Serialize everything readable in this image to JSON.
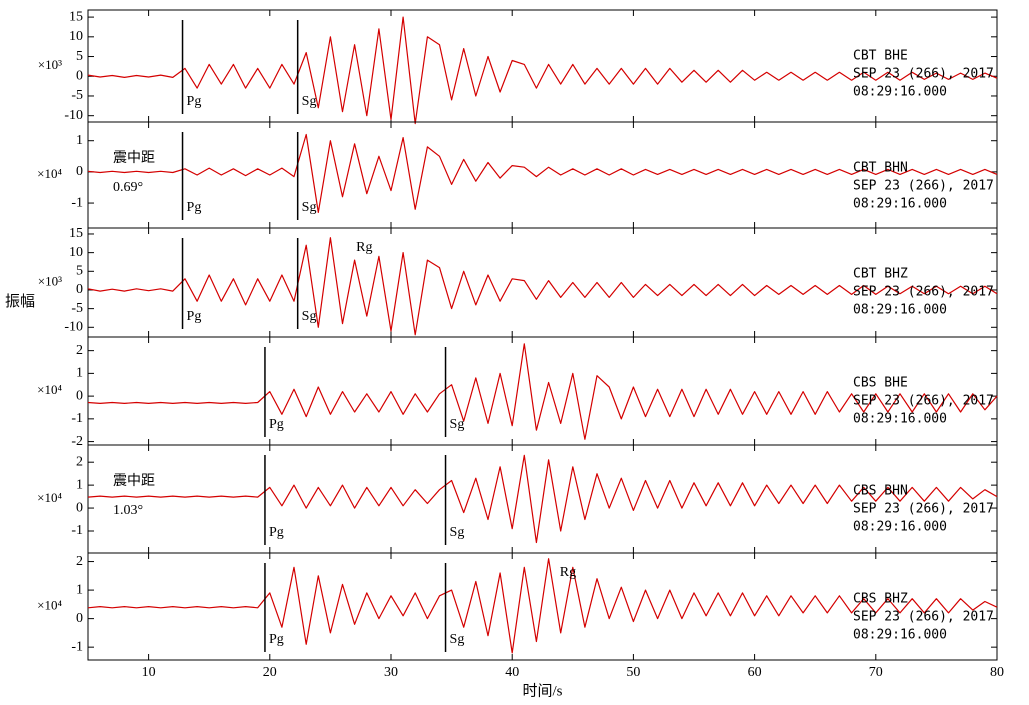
{
  "chart_data": [
    {
      "type": "line",
      "unit_label": "×10³",
      "station": "CBT BHE",
      "date": "SEP 23 (266), 2017",
      "time": "08:29:16.000",
      "color": "#d40000",
      "xlim": [
        5,
        80
      ],
      "ylim": [
        -11.6,
        16.8
      ],
      "yticks": [
        -10,
        -5,
        0,
        5,
        10,
        15
      ],
      "phases": [
        {
          "label": "Pg",
          "x": 12.8
        },
        {
          "label": "Sg",
          "x": 22.3
        }
      ],
      "x": [
        5,
        6,
        7,
        8,
        9,
        10,
        11,
        12,
        13,
        14,
        15,
        16,
        17,
        18,
        19,
        20,
        21,
        22,
        23,
        24,
        25,
        26,
        27,
        28,
        29,
        30,
        31,
        32,
        33,
        34,
        35,
        36,
        37,
        38,
        39,
        40,
        41,
        42,
        43,
        44,
        45,
        46,
        47,
        48,
        49,
        50,
        51,
        52,
        53,
        54,
        55,
        56,
        57,
        58,
        59,
        60,
        61,
        62,
        63,
        64,
        65,
        66,
        67,
        68,
        69,
        70,
        71,
        72,
        73,
        74,
        75,
        76,
        77,
        78,
        79,
        80
      ],
      "values": [
        0.3,
        -0.2,
        0.2,
        -0.3,
        0.2,
        -0.2,
        0.3,
        -0.3,
        2,
        -3,
        3,
        -2,
        3,
        -3,
        2,
        -3,
        3,
        -2,
        6,
        -8,
        10,
        -9,
        8,
        -10,
        12,
        -11,
        15,
        -12,
        10,
        8,
        -6,
        7,
        -5,
        5,
        -4,
        4,
        3,
        -3,
        3,
        -2,
        3,
        -2,
        2,
        -2,
        2,
        -2,
        2,
        -2,
        2,
        -1.5,
        1.5,
        -1.5,
        1.5,
        -1.5,
        1.5,
        -1,
        1,
        -1,
        1,
        -1,
        1,
        -1,
        1,
        -1,
        1,
        -1,
        1,
        -1,
        1,
        -0.8,
        0.8,
        -0.8,
        0.8,
        -0.8,
        0.8,
        -0.5
      ]
    },
    {
      "type": "line",
      "unit_label": "×10⁴",
      "station": "CBT BHN",
      "date": "SEP 23 (266), 2017",
      "time": "08:29:16.000",
      "color": "#d40000",
      "distance_label": "震中距",
      "distance": "0.69°",
      "xlim": [
        5,
        80
      ],
      "ylim": [
        -1.8,
        1.6
      ],
      "yticks": [
        -1,
        0,
        1
      ],
      "phases": [
        {
          "label": "Pg",
          "x": 12.8
        },
        {
          "label": "Sg",
          "x": 22.3
        }
      ],
      "x": [
        5,
        6,
        7,
        8,
        9,
        10,
        11,
        12,
        13,
        14,
        15,
        16,
        17,
        18,
        19,
        20,
        21,
        22,
        23,
        24,
        25,
        26,
        27,
        28,
        29,
        30,
        31,
        32,
        33,
        34,
        35,
        36,
        37,
        38,
        39,
        40,
        41,
        42,
        43,
        44,
        45,
        46,
        47,
        48,
        49,
        50,
        51,
        52,
        53,
        54,
        55,
        56,
        57,
        58,
        59,
        60,
        61,
        62,
        63,
        64,
        65,
        66,
        67,
        68,
        69,
        70,
        71,
        72,
        73,
        74,
        75,
        76,
        77,
        78,
        79,
        80
      ],
      "values": [
        0.02,
        -0.02,
        0.02,
        -0.02,
        0.02,
        -0.02,
        0.02,
        -0.02,
        0.1,
        -0.1,
        0.12,
        -0.1,
        0.1,
        -0.12,
        0.1,
        -0.1,
        0.12,
        -0.15,
        1.2,
        -1.3,
        1,
        -0.8,
        0.9,
        -0.7,
        0.5,
        -0.6,
        1.1,
        -1.2,
        0.8,
        0.5,
        -0.4,
        0.4,
        -0.3,
        0.3,
        -0.2,
        0.2,
        0.15,
        -0.15,
        0.15,
        -0.1,
        0.1,
        -0.1,
        0.1,
        -0.1,
        0.1,
        -0.1,
        0.08,
        -0.08,
        0.08,
        -0.08,
        0.08,
        -0.08,
        0.08,
        -0.08,
        0.08,
        -0.08,
        0.08,
        -0.08,
        0.08,
        -0.08,
        0.08,
        -0.08,
        0.08,
        -0.08,
        0.08,
        -0.08,
        0.08,
        -0.08,
        0.08,
        -0.08,
        0.08,
        -0.08,
        0.08,
        -0.08,
        0.08,
        -0.08
      ]
    },
    {
      "type": "line",
      "unit_label": "×10³",
      "station": "CBT BHZ",
      "date": "SEP 23 (266), 2017",
      "time": "08:29:16.000",
      "color": "#d40000",
      "ylabel": "振幅",
      "xlim": [
        5,
        80
      ],
      "ylim": [
        -12.6,
        16.6
      ],
      "yticks": [
        -10,
        -5,
        0,
        5,
        10,
        15
      ],
      "phases": [
        {
          "label": "Pg",
          "x": 12.8
        },
        {
          "label": "Sg",
          "x": 22.3
        }
      ],
      "annotations": [
        {
          "text": "Rg",
          "x": 27.8
        }
      ],
      "x": [
        5,
        6,
        7,
        8,
        9,
        10,
        11,
        12,
        13,
        14,
        15,
        16,
        17,
        18,
        19,
        20,
        21,
        22,
        23,
        24,
        25,
        26,
        27,
        28,
        29,
        30,
        31,
        32,
        33,
        34,
        35,
        36,
        37,
        38,
        39,
        40,
        41,
        42,
        43,
        44,
        45,
        46,
        47,
        48,
        49,
        50,
        51,
        52,
        53,
        54,
        55,
        56,
        57,
        58,
        59,
        60,
        61,
        62,
        63,
        64,
        65,
        66,
        67,
        68,
        69,
        70,
        71,
        72,
        73,
        74,
        75,
        76,
        77,
        78,
        79,
        80
      ],
      "values": [
        0.3,
        -0.3,
        0.2,
        -0.3,
        0.3,
        -0.2,
        0.3,
        -0.3,
        3,
        -3,
        4,
        -3,
        3,
        -4,
        3,
        -3,
        4,
        -3,
        12,
        -10,
        14,
        -9,
        8,
        -7,
        9,
        -11,
        10,
        -12,
        8,
        6,
        -5,
        5,
        -4,
        4,
        -3,
        3,
        2.5,
        -2.5,
        2.5,
        -2,
        2,
        -2,
        2,
        -2,
        2,
        -2,
        1.5,
        -1.5,
        1.5,
        -1.5,
        1.5,
        -1.5,
        1.5,
        -1.5,
        1.5,
        -1.5,
        1.2,
        -1.2,
        1.2,
        -1.2,
        1.2,
        -1.2,
        1.2,
        -1.2,
        1.2,
        -1.2,
        1,
        -1,
        1,
        -1,
        1,
        -1,
        1,
        -1,
        1,
        -1
      ]
    },
    {
      "type": "line",
      "unit_label": "×10⁴",
      "station": "CBS BHE",
      "date": "SEP 23 (266), 2017",
      "time": "08:29:16.000",
      "color": "#d40000",
      "xlim": [
        5,
        80
      ],
      "ylim": [
        -2.15,
        2.6
      ],
      "yticks": [
        -2,
        -1,
        0,
        1,
        2
      ],
      "phases": [
        {
          "label": "Pg",
          "x": 19.6
        },
        {
          "label": "Sg",
          "x": 34.5
        }
      ],
      "x": [
        5,
        6,
        7,
        8,
        9,
        10,
        11,
        12,
        13,
        14,
        15,
        16,
        17,
        18,
        19,
        20,
        21,
        22,
        23,
        24,
        25,
        26,
        27,
        28,
        29,
        30,
        31,
        32,
        33,
        34,
        35,
        36,
        37,
        38,
        39,
        40,
        41,
        42,
        43,
        44,
        45,
        46,
        47,
        48,
        49,
        50,
        51,
        52,
        53,
        54,
        55,
        56,
        57,
        58,
        59,
        60,
        61,
        62,
        63,
        64,
        65,
        66,
        67,
        68,
        69,
        70,
        71,
        72,
        73,
        74,
        75,
        76,
        77,
        78,
        79,
        80
      ],
      "values": [
        -0.28,
        -0.32,
        -0.28,
        -0.32,
        -0.28,
        -0.32,
        -0.28,
        -0.32,
        -0.28,
        -0.32,
        -0.28,
        -0.32,
        -0.28,
        -0.32,
        -0.28,
        0.2,
        -0.8,
        0.3,
        -0.9,
        0.4,
        -0.8,
        0.2,
        -0.7,
        0.1,
        -0.7,
        0.2,
        -0.8,
        0.1,
        -0.7,
        0.1,
        0.5,
        -1.1,
        0.8,
        -1.2,
        1.0,
        -1.3,
        2.3,
        -1.5,
        0.6,
        -1.2,
        1.0,
        -1.9,
        0.9,
        0.4,
        -1.0,
        0.4,
        -0.9,
        0.3,
        -0.9,
        0.3,
        -0.9,
        0.3,
        -0.8,
        0.3,
        -0.8,
        0.2,
        -0.8,
        0.2,
        -0.8,
        0.2,
        -0.8,
        0.2,
        -0.7,
        0.1,
        -0.7,
        0.1,
        -0.7,
        0.1,
        -0.7,
        0.1,
        -0.7,
        0.1,
        -0.7,
        0.1,
        -0.6,
        0.0
      ]
    },
    {
      "type": "line",
      "unit_label": "×10⁴",
      "station": "CBS BHN",
      "date": "SEP 23 (266), 2017",
      "time": "08:29:16.000",
      "color": "#d40000",
      "distance_label": "震中距",
      "distance": "1.03°",
      "xlim": [
        5,
        80
      ],
      "ylim": [
        -1.96,
        2.75
      ],
      "yticks": [
        -1,
        0,
        1,
        2
      ],
      "phases": [
        {
          "label": "Pg",
          "x": 19.6
        },
        {
          "label": "Sg",
          "x": 34.5
        }
      ],
      "x": [
        5,
        6,
        7,
        8,
        9,
        10,
        11,
        12,
        13,
        14,
        15,
        16,
        17,
        18,
        19,
        20,
        21,
        22,
        23,
        24,
        25,
        26,
        27,
        28,
        29,
        30,
        31,
        32,
        33,
        34,
        35,
        36,
        37,
        38,
        39,
        40,
        41,
        42,
        43,
        44,
        45,
        46,
        47,
        48,
        49,
        50,
        51,
        52,
        53,
        54,
        55,
        56,
        57,
        58,
        59,
        60,
        61,
        62,
        63,
        64,
        65,
        66,
        67,
        68,
        69,
        70,
        71,
        72,
        73,
        74,
        75,
        76,
        77,
        78,
        79,
        80
      ],
      "values": [
        0.48,
        0.52,
        0.48,
        0.52,
        0.48,
        0.52,
        0.48,
        0.52,
        0.48,
        0.52,
        0.48,
        0.52,
        0.48,
        0.52,
        0.48,
        0.9,
        0.1,
        1.0,
        0.0,
        0.9,
        0.1,
        1.0,
        0.0,
        0.9,
        0.1,
        0.9,
        0.1,
        0.8,
        0.2,
        0.8,
        1.2,
        -0.2,
        1.3,
        -0.5,
        1.8,
        -0.9,
        2.3,
        -1.5,
        2.1,
        -1.0,
        1.8,
        -0.5,
        1.5,
        0.0,
        1.3,
        -0.1,
        1.2,
        0.0,
        1.2,
        0.0,
        1.1,
        0.1,
        1.1,
        0.1,
        1.1,
        0.1,
        1.0,
        0.2,
        1.0,
        0.2,
        1.0,
        0.2,
        1.0,
        0.3,
        0.9,
        0.3,
        0.9,
        0.3,
        0.9,
        0.3,
        0.9,
        0.3,
        0.9,
        0.4,
        0.8,
        0.5
      ]
    },
    {
      "type": "line",
      "unit_label": "×10⁴",
      "station": "CBS BHZ",
      "date": "SEP 23 (266), 2017",
      "time": "08:29:16.000",
      "color": "#d40000",
      "xlabel": "时间/s",
      "xlim": [
        5,
        80
      ],
      "xticks": [
        10,
        20,
        30,
        40,
        50,
        60,
        70,
        80
      ],
      "ylim": [
        -1.45,
        2.3
      ],
      "yticks": [
        -1,
        0,
        1,
        2
      ],
      "phases": [
        {
          "label": "Pg",
          "x": 19.6
        },
        {
          "label": "Sg",
          "x": 34.5
        }
      ],
      "annotations": [
        {
          "text": "Rg",
          "x": 44.6
        }
      ],
      "x": [
        5,
        6,
        7,
        8,
        9,
        10,
        11,
        12,
        13,
        14,
        15,
        16,
        17,
        18,
        19,
        20,
        21,
        22,
        23,
        24,
        25,
        26,
        27,
        28,
        29,
        30,
        31,
        32,
        33,
        34,
        35,
        36,
        37,
        38,
        39,
        40,
        41,
        42,
        43,
        44,
        45,
        46,
        47,
        48,
        49,
        50,
        51,
        52,
        53,
        54,
        55,
        56,
        57,
        58,
        59,
        60,
        61,
        62,
        63,
        64,
        65,
        66,
        67,
        68,
        69,
        70,
        71,
        72,
        73,
        74,
        75,
        76,
        77,
        78,
        79,
        80
      ],
      "values": [
        0.38,
        0.42,
        0.38,
        0.42,
        0.38,
        0.42,
        0.38,
        0.42,
        0.38,
        0.42,
        0.38,
        0.42,
        0.38,
        0.42,
        0.38,
        0.9,
        -0.3,
        1.8,
        -0.9,
        1.5,
        -0.5,
        1.2,
        -0.2,
        0.9,
        0.0,
        0.8,
        0.1,
        0.9,
        0.0,
        0.8,
        1.0,
        -0.3,
        1.3,
        -0.6,
        1.6,
        -1.2,
        1.8,
        -0.8,
        2.1,
        -0.5,
        1.8,
        -0.3,
        1.4,
        0.0,
        1.1,
        -0.1,
        1.0,
        0.0,
        1.0,
        0.0,
        0.9,
        0.1,
        0.9,
        0.1,
        0.9,
        0.1,
        0.8,
        0.1,
        0.8,
        0.2,
        0.8,
        0.2,
        0.8,
        0.2,
        0.7,
        0.2,
        0.7,
        0.2,
        0.7,
        0.2,
        0.7,
        0.2,
        0.7,
        0.3,
        0.6,
        0.4
      ]
    }
  ]
}
